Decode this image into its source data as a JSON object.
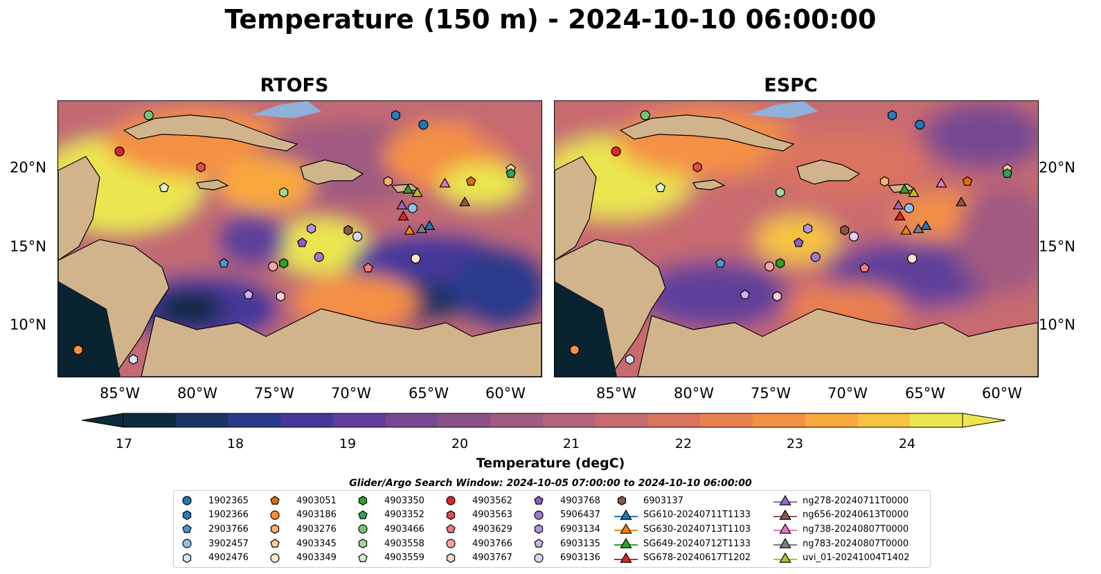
{
  "figure": {
    "title": "Temperature (150 m) - 2024-10-10 06:00:00",
    "panels": [
      {
        "title": "RTOFS"
      },
      {
        "title": "ESPC"
      }
    ],
    "lat_labels": [
      "20°N",
      "15°N",
      "10°N"
    ],
    "lon_labels": [
      "85°W",
      "80°W",
      "75°W",
      "70°W",
      "65°W",
      "60°W"
    ],
    "colorbar": {
      "label": "Temperature (degC)",
      "ticks": [
        "17",
        "18",
        "19",
        "20",
        "21",
        "22",
        "23",
        "24"
      ],
      "colors": [
        "#0d2a3c",
        "#1b3466",
        "#2a3a8a",
        "#45389a",
        "#5f3f99",
        "#774891",
        "#8c5088",
        "#a15a80",
        "#b5637a",
        "#c86b70",
        "#da7360",
        "#ea8050",
        "#f49044",
        "#f9a83c",
        "#f6c440",
        "#ebe650"
      ]
    },
    "search_window": "Glider/Argo Search Window: 2024-10-05 07:00:00 to 2024-10-10 06:00:00"
  },
  "legend": [
    {
      "label": "1902365",
      "marker": "circle",
      "color": "#1f77b4"
    },
    {
      "label": "1902366",
      "marker": "hexagon",
      "color": "#2a7ec0"
    },
    {
      "label": "2903766",
      "marker": "pentagon",
      "color": "#4b95cc"
    },
    {
      "label": "3902457",
      "marker": "circle",
      "color": "#8fc0ea"
    },
    {
      "label": "4902476",
      "marker": "hexagon",
      "color": "#d2e8fb"
    },
    {
      "label": "4903051",
      "marker": "pentagon",
      "color": "#e06e0c"
    },
    {
      "label": "4903186",
      "marker": "circle",
      "color": "#fd8f3c"
    },
    {
      "label": "4903276",
      "marker": "hexagon",
      "color": "#fdae6b"
    },
    {
      "label": "4903345",
      "marker": "pentagon",
      "color": "#fdd0a2"
    },
    {
      "label": "4903349",
      "marker": "circle",
      "color": "#fee6ce"
    },
    {
      "label": "4903350",
      "marker": "hexagon",
      "color": "#2ca02c"
    },
    {
      "label": "4903352",
      "marker": "pentagon",
      "color": "#31a354"
    },
    {
      "label": "4903466",
      "marker": "circle",
      "color": "#74c476"
    },
    {
      "label": "4903558",
      "marker": "hexagon",
      "color": "#a1d99b"
    },
    {
      "label": "4903559",
      "marker": "pentagon",
      "color": "#d9f2d0"
    },
    {
      "label": "4903562",
      "marker": "circle",
      "color": "#d62728"
    },
    {
      "label": "4903563",
      "marker": "hexagon",
      "color": "#e34a4a"
    },
    {
      "label": "4903629",
      "marker": "pentagon",
      "color": "#f07a7a"
    },
    {
      "label": "4903766",
      "marker": "circle",
      "color": "#f7a3a3"
    },
    {
      "label": "4903767",
      "marker": "hexagon",
      "color": "#fcd2d2"
    },
    {
      "label": "4903768",
      "marker": "pentagon",
      "color": "#8c5cc2"
    },
    {
      "label": "5906437",
      "marker": "circle",
      "color": "#9e78cc"
    },
    {
      "label": "6903134",
      "marker": "hexagon",
      "color": "#b394dc"
    },
    {
      "label": "6903135",
      "marker": "pentagon",
      "color": "#c9b3ea"
    },
    {
      "label": "6903136",
      "marker": "circle",
      "color": "#e0d2f5"
    },
    {
      "label": "6903137",
      "marker": "hexagon",
      "color": "#8c564b"
    },
    {
      "label": "SG610-20240711T1133",
      "marker": "triangle",
      "color": "#1f77b4"
    },
    {
      "label": "SG630-20240713T1103",
      "marker": "triangle",
      "color": "#ff7f0e"
    },
    {
      "label": "SG649-20240712T1133",
      "marker": "triangle",
      "color": "#2ca02c"
    },
    {
      "label": "SG678-20240617T1202",
      "marker": "triangle",
      "color": "#d62728"
    },
    {
      "label": "ng278-20240711T0000",
      "marker": "triangle",
      "color": "#9467bd"
    },
    {
      "label": "ng656-20240613T0000",
      "marker": "triangle",
      "color": "#8c564b"
    },
    {
      "label": "ng738-20240807T0000",
      "marker": "triangle",
      "color": "#e377c2"
    },
    {
      "label": "ng783-20240807T0000",
      "marker": "triangle",
      "color": "#7f7f7f"
    },
    {
      "label": "uvi_01-20241004T1402",
      "marker": "triangle",
      "color": "#bcbd22"
    }
  ],
  "observations": [
    {
      "id": "1902365",
      "lon": -65.7,
      "lat": 23.0
    },
    {
      "id": "1902366",
      "lon": -67.5,
      "lat": 23.6
    },
    {
      "id": "2903766",
      "lon": -78.7,
      "lat": 14.2
    },
    {
      "id": "3902457",
      "lon": -66.4,
      "lat": 17.7
    },
    {
      "id": "4902476",
      "lon": -84.6,
      "lat": 8.1
    },
    {
      "id": "4903051",
      "lon": -62.6,
      "lat": 19.4
    },
    {
      "id": "4903186",
      "lon": -88.2,
      "lat": 8.7
    },
    {
      "id": "4903276",
      "lon": -68.0,
      "lat": 19.4
    },
    {
      "id": "4903345",
      "lon": -60.0,
      "lat": 20.2
    },
    {
      "id": "4903349",
      "lon": -66.2,
      "lat": 14.5
    },
    {
      "id": "4903350",
      "lon": -74.8,
      "lat": 14.2
    },
    {
      "id": "4903352",
      "lon": -60.0,
      "lat": 19.9
    },
    {
      "id": "4903466",
      "lon": -83.6,
      "lat": 23.6
    },
    {
      "id": "4903558",
      "lon": -74.8,
      "lat": 18.7
    },
    {
      "id": "4903559",
      "lon": -82.6,
      "lat": 19.0
    },
    {
      "id": "4903562",
      "lon": -85.5,
      "lat": 21.3
    },
    {
      "id": "4903563",
      "lon": -80.2,
      "lat": 20.3
    },
    {
      "id": "4903629",
      "lon": -69.3,
      "lat": 13.9
    },
    {
      "id": "4903766",
      "lon": -75.5,
      "lat": 14.0
    },
    {
      "id": "4903767",
      "lon": -75.0,
      "lat": 12.1
    },
    {
      "id": "4903768",
      "lon": -73.6,
      "lat": 15.5
    },
    {
      "id": "5906437",
      "lon": -72.5,
      "lat": 14.6
    },
    {
      "id": "6903134",
      "lon": -73.0,
      "lat": 16.4
    },
    {
      "id": "6903135",
      "lon": -77.1,
      "lat": 12.2
    },
    {
      "id": "6903136",
      "lon": -70.0,
      "lat": 15.9
    },
    {
      "id": "6903137",
      "lon": -70.6,
      "lat": 16.3
    },
    {
      "id": "SG610-20240711T1133",
      "lon": -65.3,
      "lat": 16.6
    },
    {
      "id": "SG630-20240713T1103",
      "lon": -66.6,
      "lat": 16.3
    },
    {
      "id": "SG649-20240712T1133",
      "lon": -66.7,
      "lat": 18.9
    },
    {
      "id": "SG678-20240617T1202",
      "lon": -67.0,
      "lat": 17.2
    },
    {
      "id": "ng278-20240711T0000",
      "lon": -67.1,
      "lat": 17.9
    },
    {
      "id": "ng656-20240613T0000",
      "lon": -63.0,
      "lat": 18.1
    },
    {
      "id": "ng738-20240807T0000",
      "lon": -64.3,
      "lat": 19.3
    },
    {
      "id": "ng783-20240807T0000",
      "lon": -65.8,
      "lat": 16.4
    },
    {
      "id": "uvi_01-20241004T1402",
      "lon": -66.1,
      "lat": 18.7
    }
  ]
}
